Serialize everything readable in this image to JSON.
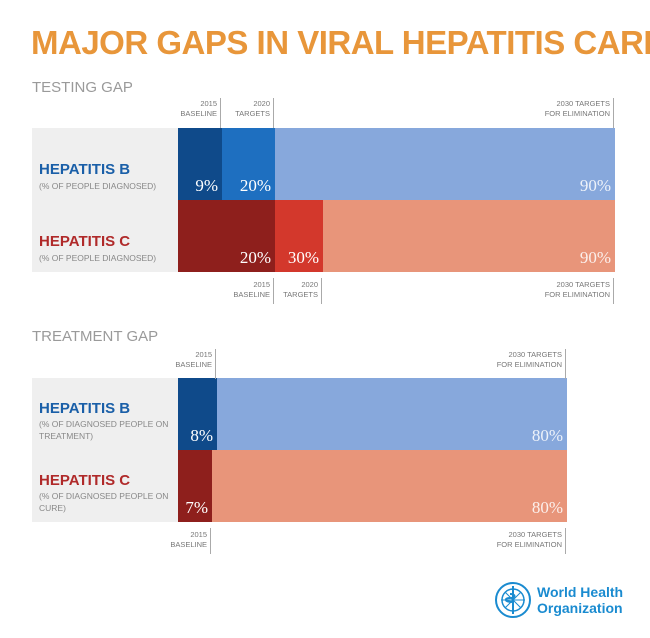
{
  "title": "MAJOR GAPS IN VIRAL HEPATITIS CARE",
  "chart_data": [
    {
      "type": "bar",
      "title": "TESTING GAP",
      "rows": [
        {
          "name": "HEPATITIS B",
          "subtitle": "(% OF PEOPLE DIAGNOSED)",
          "values": [
            9,
            20,
            90
          ],
          "labels": [
            "9%",
            "20%",
            "90%"
          ],
          "colors": [
            "#0f4a8a",
            "#1e6fc0",
            "#87a8dc"
          ],
          "name_color": "#1a5fa8"
        },
        {
          "name": "HEPATITIS C",
          "subtitle": "(% OF PEOPLE DIAGNOSED)",
          "values": [
            20,
            30,
            90
          ],
          "labels": [
            "20%",
            "30%",
            "90%"
          ],
          "colors": [
            "#8e1f1c",
            "#d3382c",
            "#e8957a"
          ],
          "name_color": "#b02a2a"
        }
      ],
      "markers_top": [
        [
          "2015",
          "BASELINE"
        ],
        [
          "2020",
          "TARGETS"
        ],
        [
          "2030 TARGETS",
          "FOR ELIMINATION"
        ]
      ],
      "markers_bottom": [
        [
          "2015",
          "BASELINE"
        ],
        [
          "2020",
          "TARGETS"
        ],
        [
          "2030 TARGETS",
          "FOR ELIMINATION"
        ]
      ]
    },
    {
      "type": "bar",
      "title": "TREATMENT GAP",
      "rows": [
        {
          "name": "HEPATITIS B",
          "subtitle": "(% OF DIAGNOSED PEOPLE ON TREATMENT)",
          "values": [
            8,
            80
          ],
          "labels": [
            "8%",
            "80%"
          ],
          "colors": [
            "#0f4a8a",
            "#87a8dc"
          ],
          "name_color": "#1a5fa8"
        },
        {
          "name": "HEPATITIS C",
          "subtitle": "(% OF DIAGNOSED PEOPLE ON CURE)",
          "values": [
            7,
            80
          ],
          "labels": [
            "7%",
            "80%"
          ],
          "colors": [
            "#8e1f1c",
            "#e8957a"
          ],
          "name_color": "#b02a2a"
        }
      ],
      "markers_top": [
        [
          "2015",
          "BASELINE"
        ],
        [
          "2030 TARGETS",
          "FOR ELIMINATION"
        ]
      ],
      "markers_bottom": [
        [
          "2015",
          "BASELINE"
        ],
        [
          "2030 TARGETS",
          "FOR ELIMINATION"
        ]
      ]
    }
  ],
  "logo": {
    "line1": "World Health",
    "line2": "Organization",
    "color": "#1a8bd0"
  }
}
